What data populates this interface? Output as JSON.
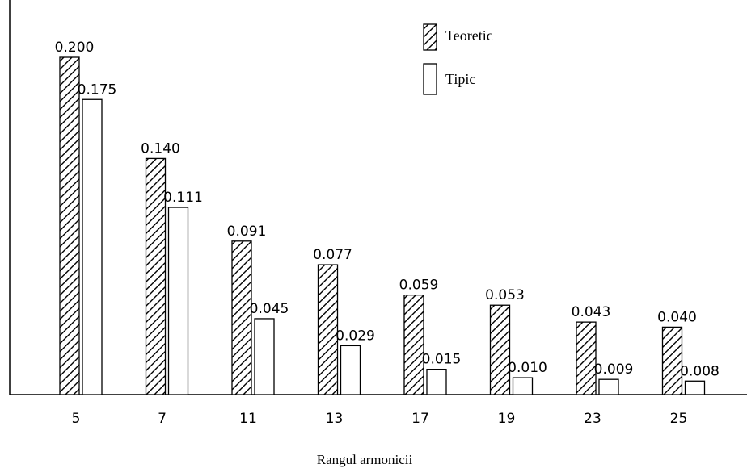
{
  "chart_data": {
    "type": "bar",
    "categories": [
      "5",
      "7",
      "11",
      "13",
      "17",
      "19",
      "23",
      "25"
    ],
    "series": [
      {
        "name": "Teoretic",
        "pattern": "hatched",
        "values": [
          0.2,
          0.14,
          0.091,
          0.077,
          0.059,
          0.053,
          0.043,
          0.04
        ],
        "labels": [
          "0.200",
          "0.140",
          "0.091",
          "0.077",
          "0.059",
          "0.053",
          "0.043",
          "0.040"
        ]
      },
      {
        "name": "Tipic",
        "pattern": "hollow",
        "values": [
          0.175,
          0.111,
          0.045,
          0.029,
          0.015,
          0.01,
          0.009,
          0.008
        ],
        "labels": [
          "0.175",
          "0.111",
          "0.045",
          "0.029",
          "0.015",
          "0.010",
          "0.009",
          "0.008"
        ]
      }
    ],
    "xlabel": "Rangul armonicii",
    "ylabel": "",
    "ylim": [
      0,
      0.2
    ],
    "grid": false,
    "legend_position": "top-center",
    "colors": {
      "stroke": "#000000",
      "fill": "#ffffff"
    }
  }
}
